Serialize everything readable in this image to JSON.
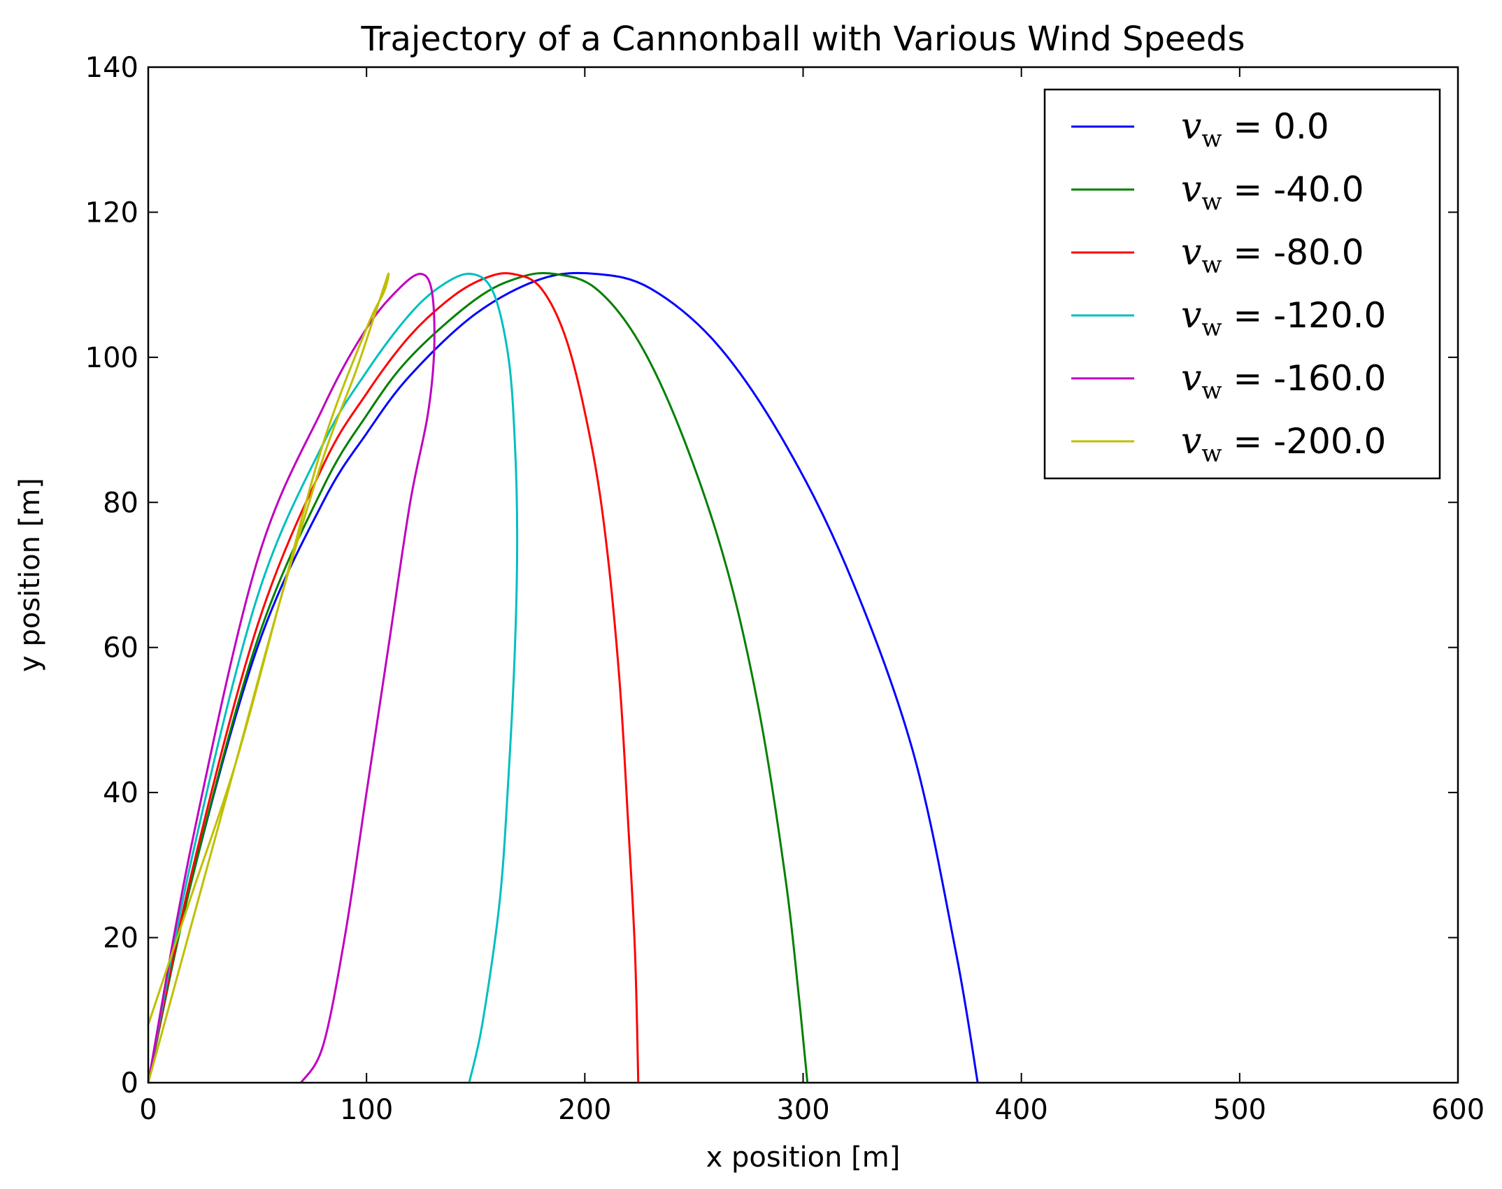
{
  "chart_data": {
    "type": "line",
    "title": "Trajectory of a Cannonball with Various Wind Speeds",
    "xlabel": "x position [m]",
    "ylabel": "y position [m]",
    "xlim": [
      0,
      600
    ],
    "ylim": [
      0,
      140
    ],
    "xticks": [
      "0",
      "100",
      "200",
      "300",
      "400",
      "500",
      "600"
    ],
    "yticks": [
      "0",
      "20",
      "40",
      "60",
      "80",
      "100",
      "120",
      "140"
    ],
    "grid": false,
    "legend_position": "top-right",
    "legend_symbol": "v",
    "legend_subscript": "w",
    "series": [
      {
        "name": "= 0.0",
        "color": "#0000ff",
        "points": [
          [
            0,
            0
          ],
          [
            20,
            28
          ],
          [
            50,
            60
          ],
          [
            80,
            80
          ],
          [
            100,
            89.5
          ],
          [
            120,
            97.5
          ],
          [
            150,
            106
          ],
          [
            180,
            110.8
          ],
          [
            205,
            111.5
          ],
          [
            230,
            109.5
          ],
          [
            260,
            102
          ],
          [
            290,
            89
          ],
          [
            320,
            71
          ],
          [
            350,
            46
          ],
          [
            370,
            18
          ],
          [
            380,
            0
          ]
        ]
      },
      {
        "name": "= -40.0",
        "color": "#008000",
        "points": [
          [
            0,
            0
          ],
          [
            20,
            28
          ],
          [
            50,
            61
          ],
          [
            80,
            82
          ],
          [
            100,
            92
          ],
          [
            120,
            100
          ],
          [
            150,
            108
          ],
          [
            170,
            111
          ],
          [
            186,
            111.5
          ],
          [
            205,
            109.5
          ],
          [
            225,
            102
          ],
          [
            245,
            89
          ],
          [
            265,
            71
          ],
          [
            280,
            51
          ],
          [
            292,
            28
          ],
          [
            298,
            12
          ],
          [
            302,
            0
          ]
        ]
      },
      {
        "name": "= -80.0",
        "color": "#ff0000",
        "points": [
          [
            0,
            0
          ],
          [
            20,
            29
          ],
          [
            50,
            63
          ],
          [
            80,
            85
          ],
          [
            100,
            95
          ],
          [
            120,
            103
          ],
          [
            140,
            108.5
          ],
          [
            155,
            111
          ],
          [
            167,
            111.5
          ],
          [
            180,
            109.5
          ],
          [
            192,
            102
          ],
          [
            203,
            88
          ],
          [
            210,
            74
          ],
          [
            216,
            55
          ],
          [
            220,
            35
          ],
          [
            223,
            18
          ],
          [
            224.5,
            0
          ]
        ]
      },
      {
        "name": "= -120.0",
        "color": "#00bfbf",
        "points": [
          [
            0,
            0
          ],
          [
            20,
            31
          ],
          [
            50,
            67
          ],
          [
            80,
            88
          ],
          [
            100,
            98
          ],
          [
            120,
            106
          ],
          [
            135,
            110
          ],
          [
            148,
            111.5
          ],
          [
            158,
            109
          ],
          [
            165,
            100
          ],
          [
            168,
            88
          ],
          [
            169,
            75
          ],
          [
            168,
            60
          ],
          [
            165,
            42
          ],
          [
            161,
            25
          ],
          [
            153,
            8
          ],
          [
            147,
            0
          ]
        ]
      },
      {
        "name": "= -160.0",
        "color": "#bf00bf",
        "points": [
          [
            0,
            0
          ],
          [
            20,
            33
          ],
          [
            50,
            72
          ],
          [
            80,
            93
          ],
          [
            100,
            104
          ],
          [
            115,
            109.5
          ],
          [
            125,
            111.5
          ],
          [
            130,
            109
          ],
          [
            131,
            101
          ],
          [
            128,
            92
          ],
          [
            120,
            80
          ],
          [
            110,
            60
          ],
          [
            100,
            40
          ],
          [
            90,
            20
          ],
          [
            80,
            5
          ],
          [
            70,
            0
          ]
        ]
      },
      {
        "name": "= -200.0",
        "color": "#bfbf00",
        "points": [
          [
            0,
            0
          ],
          [
            20,
            22
          ],
          [
            40,
            44
          ],
          [
            60,
            66
          ],
          [
            80,
            86
          ],
          [
            95,
            98
          ],
          [
            105,
            107
          ],
          [
            110,
            111.5
          ],
          [
            108,
            109
          ],
          [
            100,
            104
          ],
          [
            80,
            88
          ],
          [
            60,
            66
          ],
          [
            40,
            44
          ],
          [
            20,
            26
          ],
          [
            0,
            8
          ]
        ]
      }
    ]
  }
}
